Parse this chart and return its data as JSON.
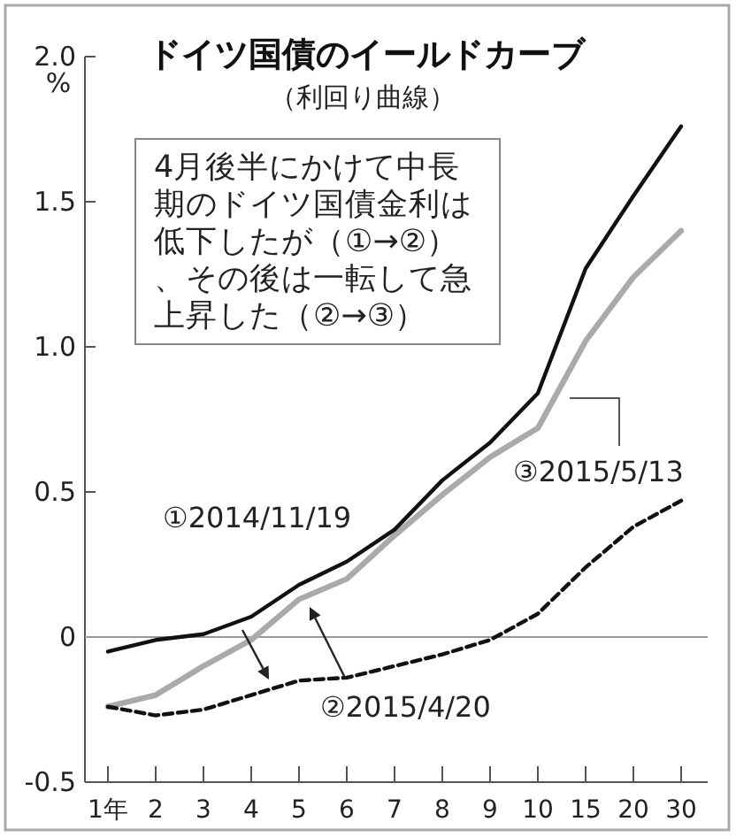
{
  "chart_data": {
    "type": "line",
    "title": "ドイツ国債のイールドカーブ",
    "subtitle": "（利回り曲線）",
    "ylabel": "%",
    "categories": [
      "1年",
      "2",
      "3",
      "4",
      "5",
      "6",
      "7",
      "8",
      "9",
      "10",
      "15",
      "20",
      "30"
    ],
    "series": [
      {
        "name": "①2014/11/19",
        "color": "#111111",
        "line_style": "solid",
        "values": [
          -0.05,
          -0.01,
          0.01,
          0.07,
          0.18,
          0.26,
          0.37,
          0.54,
          0.67,
          0.84,
          1.27,
          1.52,
          1.76
        ]
      },
      {
        "name": "②2015/4/20",
        "color": "#111111",
        "line_style": "dashed",
        "values": [
          -0.24,
          -0.27,
          -0.25,
          -0.2,
          -0.15,
          -0.14,
          -0.1,
          -0.06,
          -0.01,
          0.08,
          0.24,
          0.38,
          0.47
        ]
      },
      {
        "name": "③2015/5/13",
        "color": "#aaaaaa",
        "line_style": "solid",
        "values": [
          -0.24,
          -0.2,
          -0.1,
          -0.01,
          0.13,
          0.2,
          0.35,
          0.49,
          0.62,
          0.72,
          1.02,
          1.24,
          1.4
        ]
      }
    ],
    "ylim": [
      -0.5,
      2.0
    ],
    "yticks": [
      {
        "value": -0.5,
        "label": "-0.5"
      },
      {
        "value": 0,
        "label": "0"
      },
      {
        "value": 0.5,
        "label": "0.5"
      },
      {
        "value": 1,
        "label": "1.0"
      },
      {
        "value": 1.5,
        "label": "1.5"
      },
      {
        "value": 2,
        "label": "2.0"
      }
    ],
    "ref_lines": [
      {
        "axis": "y",
        "value": 0,
        "color": "#999999"
      }
    ],
    "annotations": [
      "4月後半にかけて中長期のドイツ国債金利は低下したが（①→②）、その後は一転して急上昇した（②→③）"
    ],
    "grid": false,
    "legend": false,
    "marker": "none"
  }
}
